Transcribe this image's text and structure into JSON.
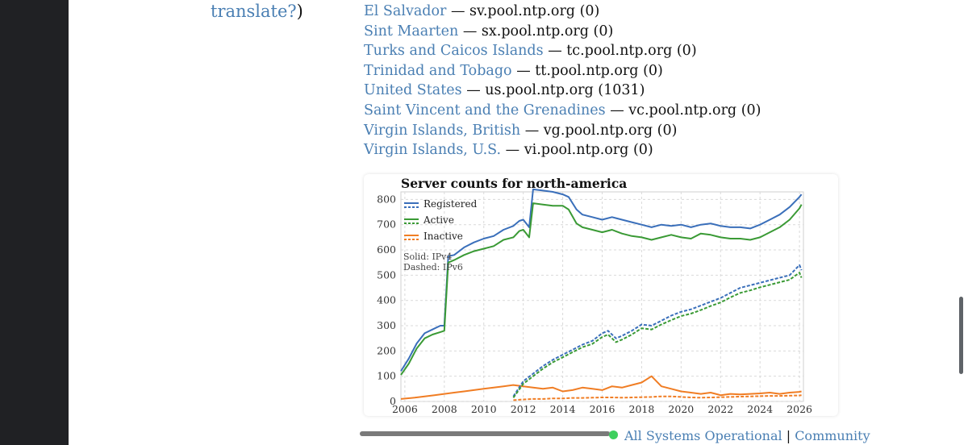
{
  "side": {
    "prefix": "translate?",
    "suffix": ")"
  },
  "countries": [
    {
      "name": "El Salvador",
      "host": "sv.pool.ntp.org",
      "count": "(0)"
    },
    {
      "name": "Sint Maarten",
      "host": "sx.pool.ntp.org",
      "count": "(0)"
    },
    {
      "name": "Turks and Caicos Islands",
      "host": "tc.pool.ntp.org",
      "count": "(0)"
    },
    {
      "name": "Trinidad and Tobago",
      "host": "tt.pool.ntp.org",
      "count": "(0)"
    },
    {
      "name": "United States",
      "host": "us.pool.ntp.org",
      "count": "(1031)"
    },
    {
      "name": "Saint Vincent and the Grenadines",
      "host": "vc.pool.ntp.org",
      "count": "(0)"
    },
    {
      "name": "Virgin Islands, British",
      "host": "vg.pool.ntp.org",
      "count": "(0)"
    },
    {
      "name": "Virgin Islands, U.S.",
      "host": "vi.pool.ntp.org",
      "count": "(0)"
    }
  ],
  "separator": "—",
  "footer": {
    "status": "All Systems Operational",
    "divider": "|",
    "community": "Community"
  },
  "chart_data": {
    "type": "line",
    "title": "Server counts for north-america",
    "xlabel": "",
    "ylabel": "",
    "xlim": [
      2005.8,
      2026.2
    ],
    "ylim": [
      0,
      830
    ],
    "x_ticks": [
      "2006",
      "2008",
      "2010",
      "2012",
      "2014",
      "2016",
      "2018",
      "2020",
      "2022",
      "2024",
      "2026"
    ],
    "y_ticks": [
      "0",
      "100",
      "200",
      "300",
      "400",
      "500",
      "600",
      "700",
      "800"
    ],
    "grid": true,
    "legend_position": "top-left",
    "legend": [
      {
        "label": "Registered",
        "color": "#3a6fba"
      },
      {
        "label": "Active",
        "color": "#3a9a35"
      },
      {
        "label": "Inactive",
        "color": "#f07d24"
      }
    ],
    "note": [
      "Solid: IPv4",
      "Dashed: IPv6"
    ],
    "series": [
      {
        "name": "Registered",
        "style": "solid",
        "color": "#3a6fba",
        "x": [
          2005.8,
          2006.2,
          2006.6,
          2007.0,
          2007.4,
          2007.8,
          2008.0,
          2008.2,
          2008.5,
          2009.0,
          2009.5,
          2010.0,
          2010.5,
          2011.0,
          2011.5,
          2011.8,
          2012.0,
          2012.3,
          2012.5,
          2013.0,
          2013.5,
          2014.0,
          2014.3,
          2014.7,
          2015.0,
          2015.5,
          2016.0,
          2016.5,
          2017.0,
          2017.5,
          2018.0,
          2018.5,
          2019.0,
          2019.5,
          2020.0,
          2020.5,
          2021.0,
          2021.5,
          2022.0,
          2022.5,
          2023.0,
          2023.5,
          2024.0,
          2024.5,
          2025.0,
          2025.5,
          2026.0,
          2026.1
        ],
        "y": [
          120,
          170,
          230,
          270,
          285,
          300,
          300,
          575,
          580,
          610,
          630,
          645,
          655,
          680,
          695,
          715,
          720,
          690,
          840,
          835,
          830,
          820,
          810,
          760,
          740,
          730,
          720,
          730,
          720,
          710,
          700,
          690,
          700,
          695,
          700,
          690,
          700,
          705,
          695,
          690,
          690,
          685,
          700,
          720,
          740,
          770,
          810,
          820
        ]
      },
      {
        "name": "Active",
        "style": "solid",
        "color": "#3a9a35",
        "x": [
          2005.8,
          2006.2,
          2006.6,
          2007.0,
          2007.4,
          2007.8,
          2008.0,
          2008.2,
          2008.5,
          2009.0,
          2009.5,
          2010.0,
          2010.5,
          2011.0,
          2011.5,
          2011.8,
          2012.0,
          2012.3,
          2012.5,
          2013.0,
          2013.5,
          2014.0,
          2014.3,
          2014.7,
          2015.0,
          2015.5,
          2016.0,
          2016.5,
          2017.0,
          2017.5,
          2018.0,
          2018.5,
          2019.0,
          2019.5,
          2020.0,
          2020.5,
          2021.0,
          2021.5,
          2022.0,
          2022.5,
          2023.0,
          2023.5,
          2024.0,
          2024.5,
          2025.0,
          2025.5,
          2026.0,
          2026.1
        ],
        "y": [
          105,
          150,
          210,
          250,
          265,
          275,
          280,
          550,
          560,
          580,
          595,
          605,
          615,
          640,
          650,
          675,
          680,
          650,
          785,
          780,
          775,
          775,
          760,
          705,
          690,
          680,
          670,
          680,
          665,
          655,
          650,
          640,
          650,
          660,
          650,
          645,
          665,
          660,
          650,
          645,
          645,
          640,
          650,
          670,
          690,
          720,
          765,
          780
        ]
      },
      {
        "name": "Inactive",
        "style": "solid",
        "color": "#f07d24",
        "x": [
          2005.8,
          2006.5,
          2007.0,
          2007.5,
          2008.0,
          2008.5,
          2009.0,
          2009.5,
          2010.0,
          2010.5,
          2011.0,
          2011.5,
          2012.0,
          2012.5,
          2013.0,
          2013.5,
          2014.0,
          2014.5,
          2015.0,
          2015.5,
          2016.0,
          2016.5,
          2017.0,
          2017.5,
          2018.0,
          2018.5,
          2019.0,
          2019.5,
          2020.0,
          2020.5,
          2021.0,
          2021.5,
          2022.0,
          2022.5,
          2023.0,
          2023.5,
          2024.0,
          2024.5,
          2025.0,
          2025.5,
          2026.0,
          2026.1
        ],
        "y": [
          10,
          15,
          20,
          25,
          30,
          35,
          40,
          45,
          50,
          55,
          60,
          65,
          60,
          55,
          50,
          55,
          40,
          45,
          55,
          50,
          45,
          60,
          55,
          65,
          75,
          100,
          60,
          50,
          40,
          35,
          30,
          35,
          25,
          30,
          28,
          30,
          32,
          35,
          30,
          35,
          38,
          40
        ]
      },
      {
        "name": "Registered",
        "style": "dashed",
        "color": "#3a6fba",
        "x": [
          2011.5,
          2012.0,
          2012.5,
          2013.0,
          2013.5,
          2014.0,
          2014.5,
          2015.0,
          2015.5,
          2016.0,
          2016.3,
          2016.7,
          2017.0,
          2017.5,
          2018.0,
          2018.5,
          2019.0,
          2019.5,
          2020.0,
          2020.5,
          2021.0,
          2021.5,
          2022.0,
          2022.5,
          2023.0,
          2023.5,
          2024.0,
          2024.5,
          2025.0,
          2025.5,
          2026.0,
          2026.1
        ],
        "y": [
          20,
          80,
          110,
          140,
          165,
          185,
          205,
          225,
          240,
          270,
          280,
          250,
          260,
          280,
          305,
          300,
          320,
          340,
          355,
          365,
          380,
          395,
          410,
          430,
          450,
          460,
          470,
          480,
          490,
          500,
          540,
          520
        ]
      },
      {
        "name": "Active",
        "style": "dashed",
        "color": "#3a9a35",
        "x": [
          2011.5,
          2012.0,
          2012.5,
          2013.0,
          2013.5,
          2014.0,
          2014.5,
          2015.0,
          2015.5,
          2016.0,
          2016.3,
          2016.7,
          2017.0,
          2017.5,
          2018.0,
          2018.5,
          2019.0,
          2019.5,
          2020.0,
          2020.5,
          2021.0,
          2021.5,
          2022.0,
          2022.5,
          2023.0,
          2023.5,
          2024.0,
          2024.5,
          2025.0,
          2025.5,
          2026.0,
          2026.1
        ],
        "y": [
          15,
          70,
          100,
          130,
          155,
          175,
          195,
          215,
          228,
          255,
          265,
          235,
          245,
          265,
          290,
          285,
          305,
          322,
          338,
          348,
          362,
          378,
          392,
          412,
          430,
          440,
          452,
          462,
          472,
          482,
          510,
          490
        ]
      },
      {
        "name": "Inactive",
        "style": "dashed",
        "color": "#f07d24",
        "x": [
          2011.5,
          2012.0,
          2012.5,
          2013.0,
          2013.5,
          2014.0,
          2014.5,
          2015.0,
          2015.5,
          2016.0,
          2016.5,
          2017.0,
          2017.5,
          2018.0,
          2018.5,
          2019.0,
          2019.5,
          2020.0,
          2020.5,
          2021.0,
          2021.5,
          2022.0,
          2022.5,
          2023.0,
          2023.5,
          2024.0,
          2024.5,
          2025.0,
          2025.5,
          2026.0,
          2026.1
        ],
        "y": [
          5,
          8,
          10,
          10,
          12,
          12,
          14,
          14,
          15,
          16,
          16,
          15,
          16,
          17,
          18,
          20,
          20,
          18,
          16,
          15,
          16,
          17,
          18,
          19,
          20,
          21,
          22,
          22,
          23,
          24,
          25
        ]
      }
    ]
  }
}
